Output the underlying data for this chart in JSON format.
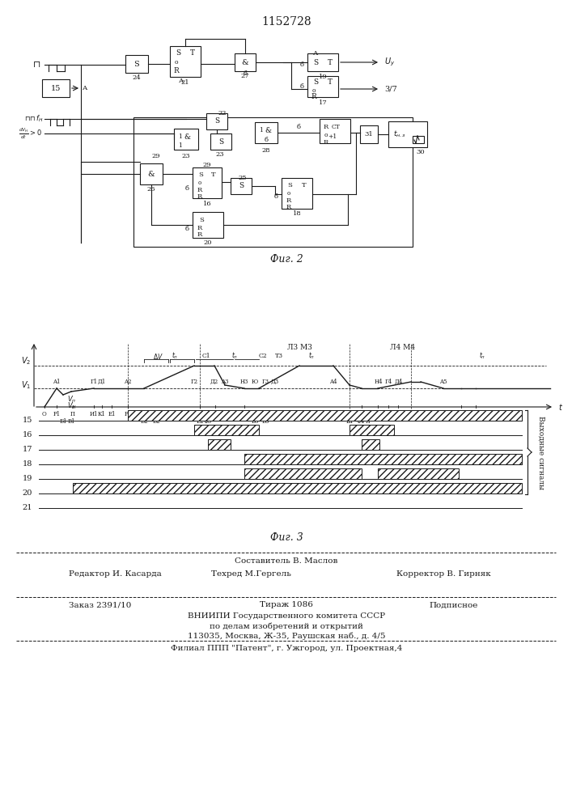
{
  "title": "1152728",
  "fig2_caption": "Фиг. 2",
  "fig3_caption": "Фиг. 3",
  "bg_color": "#ffffff",
  "line_color": "#1a1a1a",
  "footer": {
    "line1": "Составитель В. Маслов",
    "line2_left": "Редактор И. Касарда",
    "line2_mid": "Техред М.Гергель",
    "line2_right": "Корректор В. Гирняк",
    "line3_left": "Заказ 2391/10",
    "line3_mid": "Тираж 1086",
    "line3_right": "Подписное",
    "line4": "ВНИИПИ Государственного комитета СССР",
    "line5": "по делам изобретений и открытий",
    "line6": "113035, Москва, Ж-35, Раушская наб., д. 4/5",
    "line7": "Филиал ППП \"Патент\", г. Ужгород, ул. Проектная,4"
  }
}
